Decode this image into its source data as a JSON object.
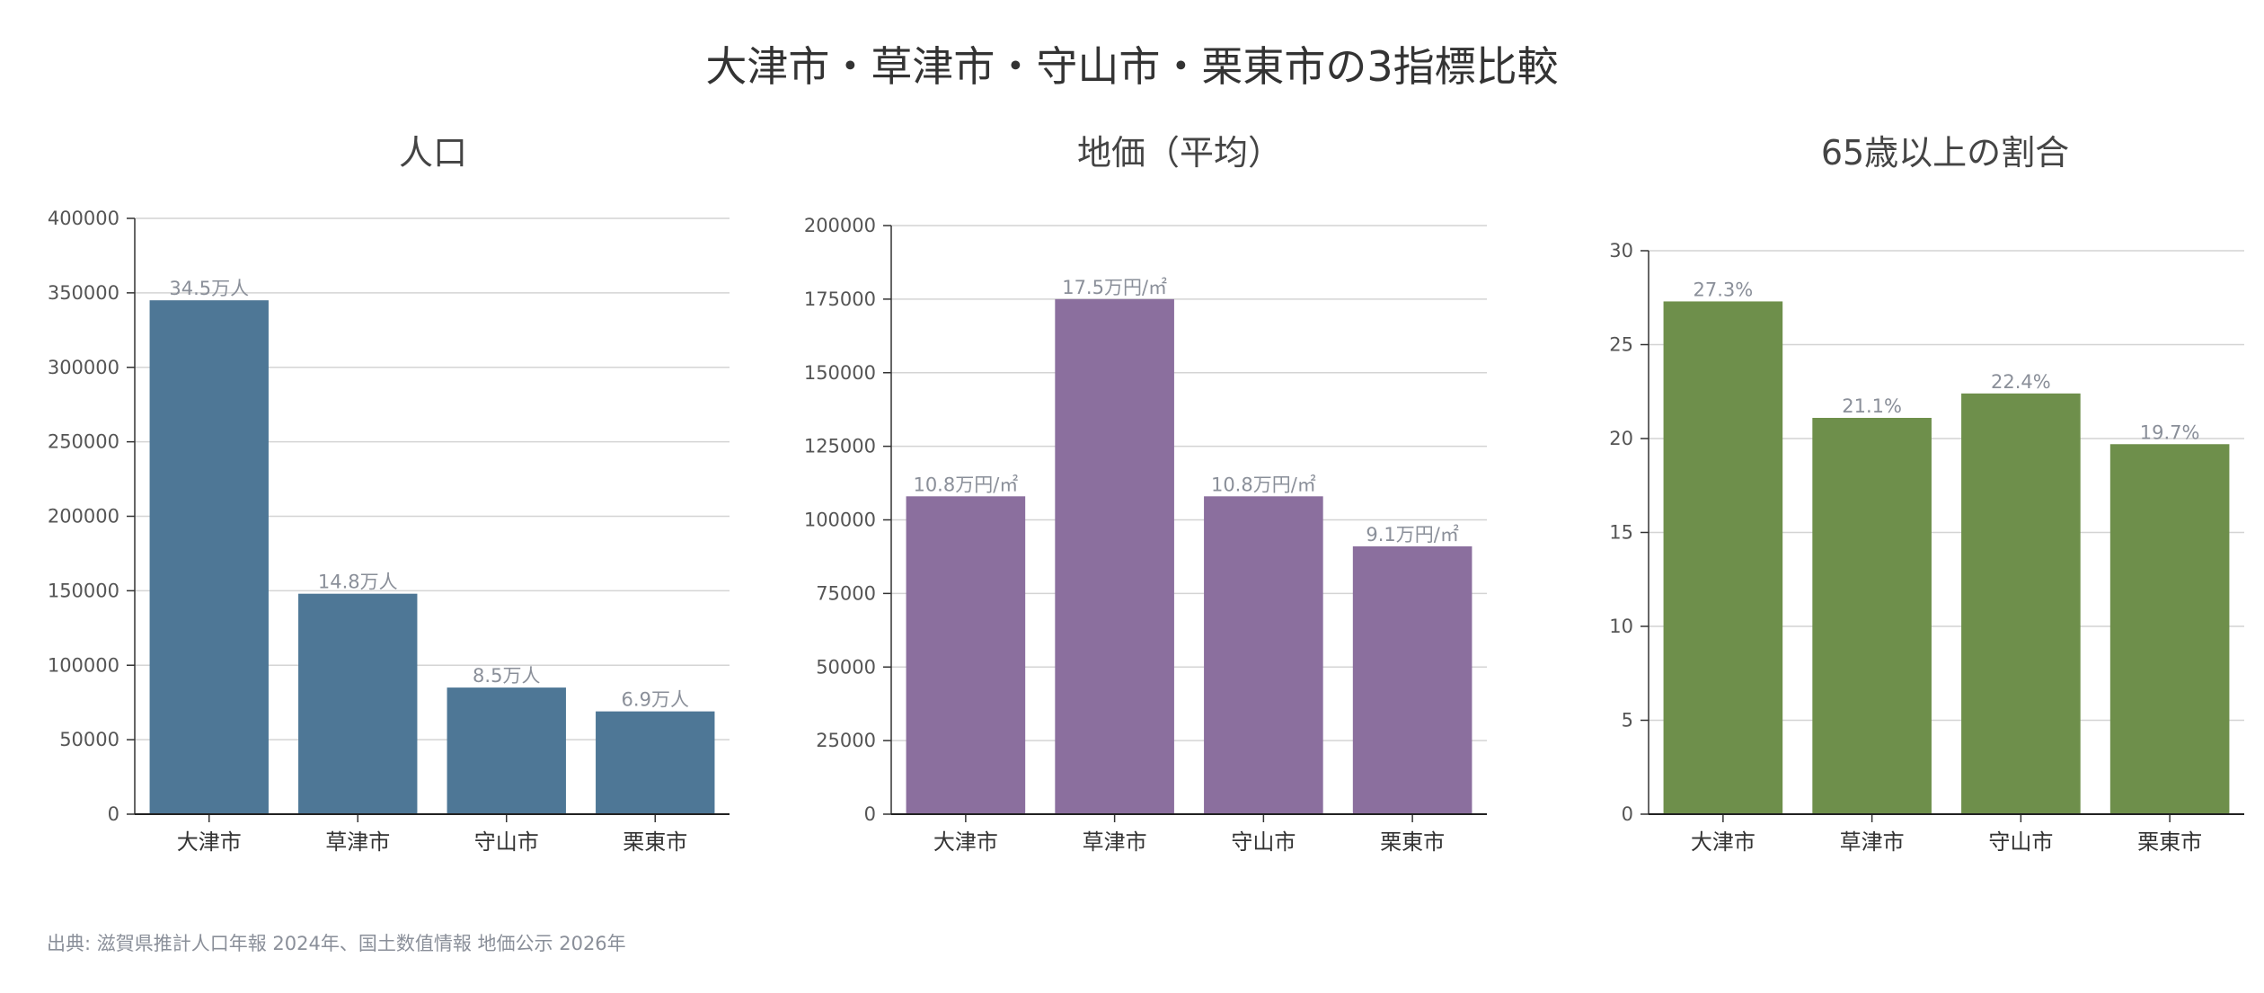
{
  "title": "大津市・草津市・守山市・栗東市の3指標比較",
  "source": "出典: 滋賀県推計人口年報 2024年、国土数值情報 地価公示 2026年",
  "chart_data": [
    {
      "type": "bar",
      "title": "人口",
      "categories": [
        "大津市",
        "草津市",
        "守山市",
        "栗東市"
      ],
      "values": [
        345000,
        148000,
        85000,
        69000
      ],
      "data_labels": [
        "34.5万人",
        "14.8万人",
        "8.5万人",
        "6.9万人"
      ],
      "ylim": [
        0,
        400000
      ],
      "yticks": [
        0,
        50000,
        100000,
        150000,
        200000,
        250000,
        300000,
        350000,
        400000
      ],
      "color": "#4e7796",
      "grid": true
    },
    {
      "type": "bar",
      "title": "地価（平均）",
      "categories": [
        "大津市",
        "草津市",
        "守山市",
        "栗東市"
      ],
      "values": [
        108000,
        175000,
        108000,
        91000
      ],
      "data_labels": [
        "10.8万円/㎡",
        "17.5万円/㎡",
        "10.8万円/㎡",
        "9.1万円/㎡"
      ],
      "ylim": [
        0,
        200000
      ],
      "yticks": [
        0,
        25000,
        50000,
        75000,
        100000,
        125000,
        150000,
        175000,
        200000
      ],
      "color": "#8b6f9e",
      "grid": true
    },
    {
      "type": "bar",
      "title": "65歳以上の割合",
      "categories": [
        "大津市",
        "草津市",
        "守山市",
        "栗東市"
      ],
      "values": [
        27.3,
        21.1,
        22.4,
        19.7
      ],
      "data_labels": [
        "27.3%",
        "21.1%",
        "22.4%",
        "19.7%"
      ],
      "ylim": [
        0,
        30
      ],
      "yticks": [
        0,
        5,
        10,
        15,
        20,
        25,
        30
      ],
      "color": "#6e8f4b",
      "grid": true
    }
  ]
}
